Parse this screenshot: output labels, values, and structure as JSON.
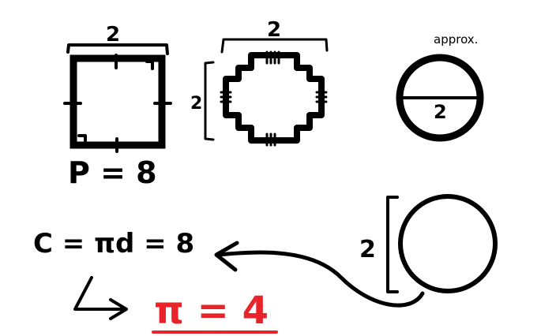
{
  "sketch": {
    "square": {
      "side_label": "2",
      "perimeter_label": "P = 8"
    },
    "stepped_shape": {
      "top_label": "2",
      "side_label": "2"
    },
    "circle_approx": {
      "note": "approx.",
      "diameter_label": "2"
    },
    "equation": {
      "line1": "C = πd = 8",
      "result": "π = 4"
    },
    "circle": {
      "side_label": "2"
    }
  },
  "colors": {
    "ink": "#000000",
    "result": "#e8232a",
    "background": "#ffffff"
  }
}
